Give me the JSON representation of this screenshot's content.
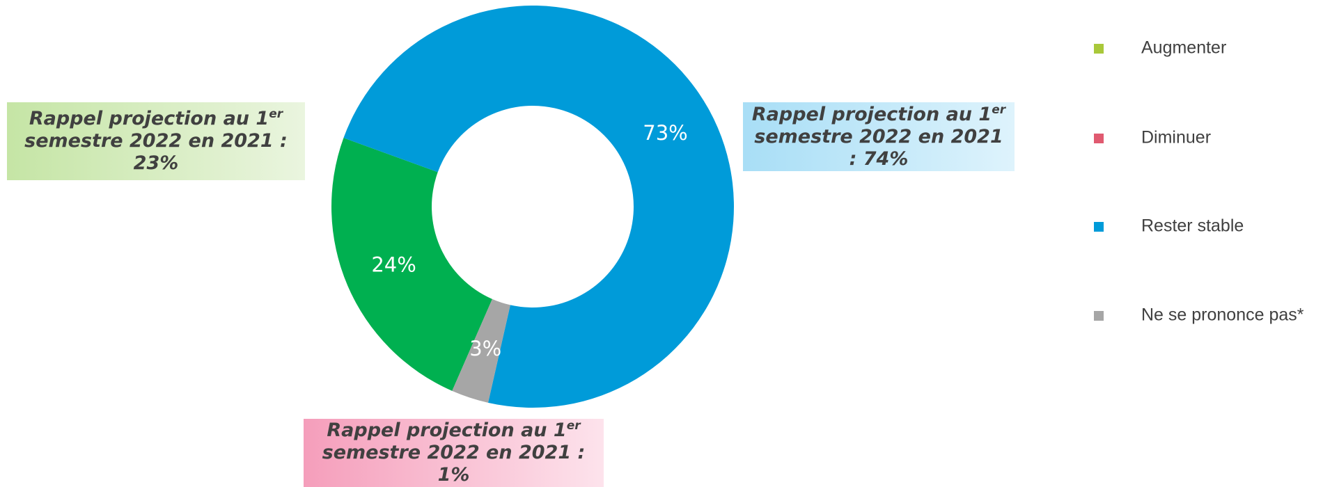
{
  "chart_data": {
    "type": "donut",
    "categories": [
      "Augmenter",
      "Diminuer",
      "Rester stable",
      "Ne se prononce pas*"
    ],
    "values": [
      24,
      0,
      73,
      3
    ],
    "value_labels": [
      "24%",
      null,
      "73%",
      "3%"
    ],
    "colors": [
      "#00b050",
      "#e05a70",
      "#009bd9",
      "#a6a6a6"
    ],
    "legend_colors": [
      "#a9c83a",
      "#e05a70",
      "#009bd9",
      "#a6a6a6"
    ],
    "legend": "right",
    "annotations": [
      {
        "parts": [
          "Rappel projection au 1",
          "er",
          " semestre 2022 en 2021 : 23%"
        ]
      },
      {
        "parts": [
          "Rappel projection au 1",
          "er",
          " semestre 2022 en 2021 : 74%"
        ]
      },
      {
        "parts": [
          "Rappel projection au 1",
          "er",
          " semestre 2022 en 2021 : 1%"
        ]
      }
    ]
  }
}
